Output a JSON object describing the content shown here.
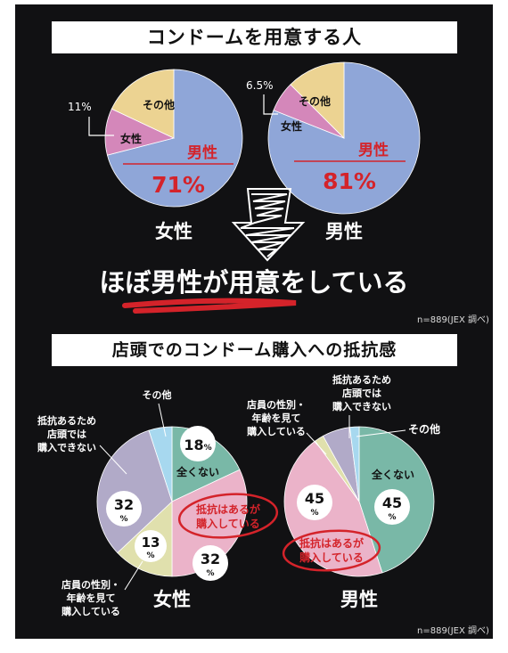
{
  "section1": {
    "title": "コンドームを用意する人",
    "headline": "ほぼ男性が用意をしている",
    "note": "n=889(JEX 調べ)"
  },
  "section2": {
    "title": "店頭でのコンドーム購入への抵抗感",
    "note": "n=889(JEX 調べ)"
  },
  "colors": {
    "blue": "#8fa6d8",
    "pink": "#d487ba",
    "yellow": "#ecd392",
    "teal": "#79b8a7",
    "lightpink": "#ebb3c9",
    "cream": "#e0e0ad",
    "lavender": "#b1aac8",
    "lightblue": "#a7d8ef",
    "red": "#d4232a"
  },
  "chart_data": [
    {
      "type": "pie",
      "title": "女性",
      "slices": [
        {
          "label": "男性",
          "value": 71,
          "display": "71%"
        },
        {
          "label": "女性",
          "value": 11,
          "display": "11%"
        },
        {
          "label": "その他",
          "value": 18,
          "display": ""
        }
      ]
    },
    {
      "type": "pie",
      "title": "男性",
      "slices": [
        {
          "label": "男性",
          "value": 81,
          "display": "81%"
        },
        {
          "label": "女性",
          "value": 6.5,
          "display": "6.5%"
        },
        {
          "label": "その他",
          "value": 12.5,
          "display": ""
        }
      ]
    },
    {
      "type": "pie",
      "title": "女性",
      "slices": [
        {
          "label": "全くない",
          "value": 18,
          "display": "18%"
        },
        {
          "label": "抵抗はあるが購入している",
          "value": 32,
          "display": "32%"
        },
        {
          "label": "店員の性別・年齢を見て購入している",
          "value": 13,
          "display": "13%"
        },
        {
          "label": "抵抗あるため店頭では購入できない",
          "value": 32,
          "display": "32%"
        },
        {
          "label": "その他",
          "value": 5,
          "display": ""
        }
      ]
    },
    {
      "type": "pie",
      "title": "男性",
      "slices": [
        {
          "label": "全くない",
          "value": 45,
          "display": "45%"
        },
        {
          "label": "抵抗はあるが購入している",
          "value": 45,
          "display": "45%"
        },
        {
          "label": "店員の性別・年齢を見て購入している",
          "value": 2,
          "display": ""
        },
        {
          "label": "抵抗あるため店頭では購入できない",
          "value": 6,
          "display": ""
        },
        {
          "label": "その他",
          "value": 2,
          "display": ""
        }
      ]
    }
  ]
}
